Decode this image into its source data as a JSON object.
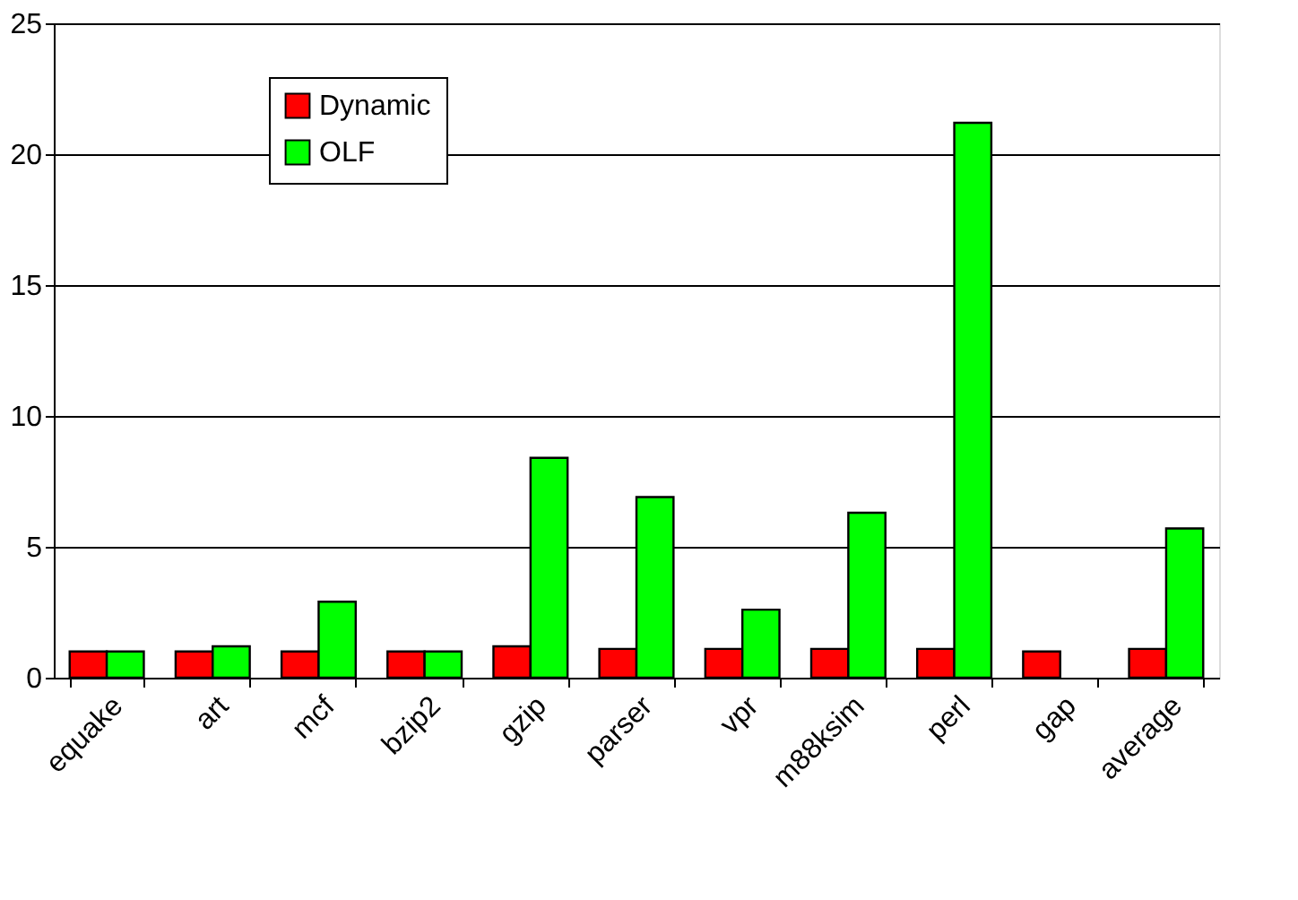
{
  "chart_data": {
    "type": "bar",
    "categories": [
      "equake",
      "art",
      "mcf",
      "bzip2",
      "gzip",
      "parser",
      "vpr",
      "m88ksim",
      "perl",
      "gap",
      "average"
    ],
    "series": [
      {
        "name": "Dynamic",
        "color": "#ff0000",
        "values": [
          1.0,
          1.0,
          1.0,
          1.0,
          1.2,
          1.1,
          1.1,
          1.1,
          1.1,
          1.0,
          1.1
        ]
      },
      {
        "name": "OLF",
        "color": "#00ff00",
        "values": [
          1.0,
          1.2,
          2.9,
          1.0,
          8.4,
          6.9,
          2.6,
          6.3,
          21.2,
          null,
          5.7
        ]
      }
    ],
    "ylim": [
      0,
      25
    ],
    "yticks": [
      0,
      5,
      10,
      15,
      20,
      25
    ],
    "grid": "y",
    "legend": "top left"
  }
}
